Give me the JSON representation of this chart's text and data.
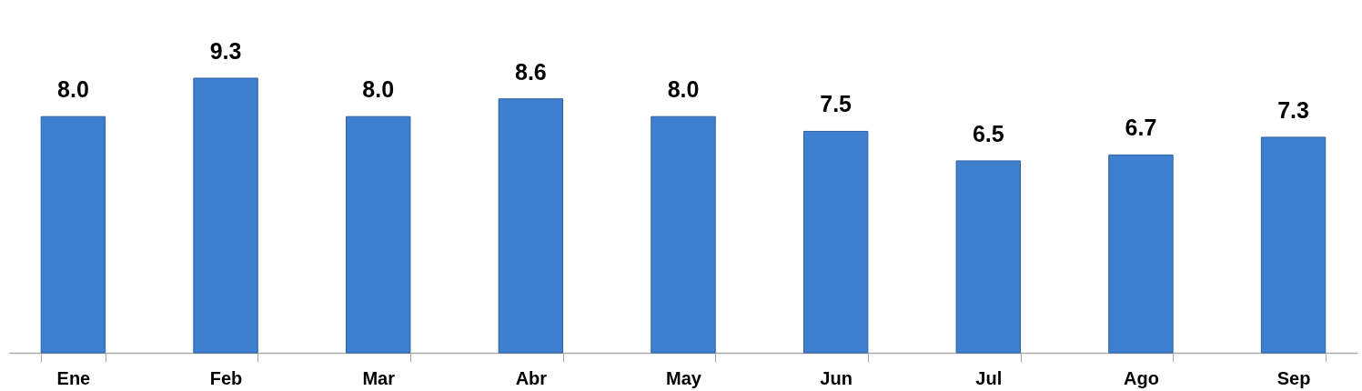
{
  "chart_data": {
    "type": "bar",
    "categories": [
      "Ene",
      "Feb",
      "Mar",
      "Abr",
      "May",
      "Jun",
      "Jul",
      "Ago",
      "Sep"
    ],
    "values": [
      8.0,
      9.3,
      8.0,
      8.6,
      8.0,
      7.5,
      6.5,
      6.7,
      7.3
    ],
    "value_labels": [
      "8.0",
      "9.3",
      "8.0",
      "8.6",
      "8.0",
      "7.5",
      "6.5",
      "6.7",
      "7.3"
    ],
    "color": "#3f7fcf",
    "grid": false,
    "tick_labels": "x"
  }
}
